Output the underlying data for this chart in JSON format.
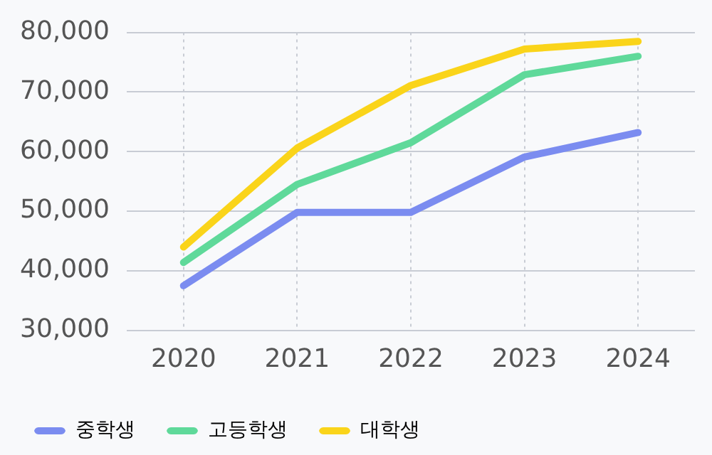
{
  "chart_data": {
    "type": "line",
    "categories": [
      "2020",
      "2021",
      "2022",
      "2023",
      "2024"
    ],
    "series": [
      {
        "name": "중학생",
        "color": "#7b8cf0",
        "values": [
          37500,
          49800,
          49800,
          59100,
          63200
        ]
      },
      {
        "name": "고등학생",
        "color": "#5fd99a",
        "values": [
          41400,
          54500,
          61500,
          72900,
          76000
        ]
      },
      {
        "name": "대학생",
        "color": "#fad41a",
        "values": [
          44000,
          60600,
          71100,
          77200,
          78500
        ]
      }
    ],
    "ylim": [
      30000,
      80000
    ],
    "yticks": [
      {
        "value": 30000,
        "label": "30,000"
      },
      {
        "value": 40000,
        "label": "40,000"
      },
      {
        "value": 50000,
        "label": "50,000"
      },
      {
        "value": 60000,
        "label": "60,000"
      },
      {
        "value": 70000,
        "label": "70,000"
      },
      {
        "value": 80000,
        "label": "80,000"
      }
    ],
    "grid": true,
    "legend": "bottom left",
    "marker": "none",
    "line_style": "solid"
  }
}
